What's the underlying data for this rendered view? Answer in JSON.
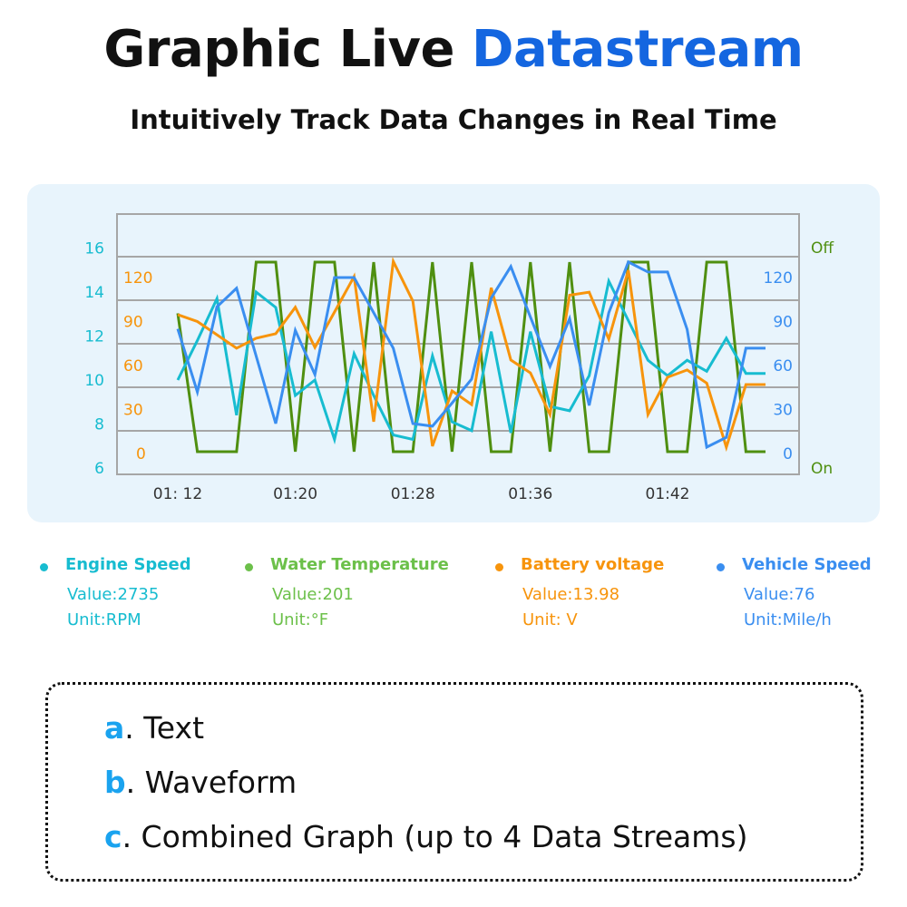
{
  "header": {
    "title_main": "Graphic Live",
    "title_accent": "Datastream",
    "subtitle": "Intuitively Track Data Changes in Real Time"
  },
  "colors": {
    "title_accent": "#1466e0",
    "engine_speed": "#17bcd0",
    "water_temperature_line": "#4f8f10",
    "water_temperature_legend": "#6cc04a",
    "battery_voltage": "#f7940c",
    "vehicle_speed": "#3a8ef0",
    "panel_bg": "#e8f4fc",
    "grid": "#a6a6a6",
    "mode_letter": "#1aa3ef"
  },
  "chart_data": {
    "type": "line",
    "x_tick_labels": [
      {
        "index": 0,
        "label": "01: 12"
      },
      {
        "index": 6,
        "label": "01:20"
      },
      {
        "index": 12,
        "label": "01:28"
      },
      {
        "index": 18,
        "label": "01:36"
      },
      {
        "index": 25,
        "label": "01:42"
      }
    ],
    "grid": true,
    "axes": {
      "left_outer": {
        "series": "Engine Speed",
        "ticks": [
          "6",
          "8",
          "10",
          "12",
          "14",
          "16"
        ],
        "range": [
          6,
          16
        ]
      },
      "left_inner": {
        "series": "Battery voltage",
        "ticks": [
          "0",
          "30",
          "60",
          "90",
          "120"
        ],
        "range": [
          0,
          120
        ]
      },
      "right_inner": {
        "series": "Vehicle Speed",
        "ticks": [
          "0",
          "30",
          "60",
          "90",
          "120"
        ],
        "range": [
          0,
          120
        ]
      },
      "right_outer": {
        "series": "Water Temperature",
        "ticks": [
          "On",
          "Off"
        ],
        "range": [
          0,
          1
        ]
      }
    },
    "series": [
      {
        "name": "Engine Speed",
        "axis": "left_outer",
        "color": "#17bcd0",
        "values": [
          10.0,
          11.8,
          13.7,
          8.4,
          14.0,
          13.3,
          9.3,
          10.0,
          7.3,
          11.2,
          9.3,
          7.5,
          7.3,
          11.1,
          8.1,
          7.7,
          12.2,
          7.6,
          12.2,
          8.8,
          8.6,
          10.2,
          14.5,
          12.7,
          10.9,
          10.2,
          10.9,
          10.4,
          11.9,
          10.3,
          10.3
        ]
      },
      {
        "name": "Water Temperature",
        "axis": "right_outer",
        "color": "#4f8f10",
        "values": [
          0.73,
          0,
          0,
          0,
          1,
          1,
          0,
          1,
          1,
          0,
          1,
          0,
          0,
          1,
          0,
          1,
          0,
          0,
          1,
          0,
          1,
          0,
          0,
          1,
          1,
          0,
          0,
          1,
          1,
          0,
          0
        ]
      },
      {
        "name": "Battery voltage",
        "axis": "left_inner",
        "color": "#f7940c",
        "values": [
          94.7,
          90,
          81,
          71.8,
          78.6,
          81.7,
          99.7,
          72.4,
          96.5,
          120.7,
          21.7,
          131,
          104,
          5,
          42.7,
          33.4,
          113,
          63.8,
          55,
          26.6,
          108,
          110,
          78,
          125,
          26.6,
          52,
          57,
          48,
          4.3,
          47,
          47
        ]
      },
      {
        "name": "Vehicle Speed",
        "axis": "right_inner",
        "color": "#3a8ef0",
        "values": [
          85,
          42,
          100,
          112.7,
          66.5,
          20.4,
          84,
          53.8,
          120,
          120,
          96,
          71.8,
          20.4,
          18.6,
          34.4,
          50.8,
          106,
          127.5,
          93,
          59.4,
          92,
          32.8,
          96,
          130.6,
          123.8,
          123.8,
          84.6,
          4.3,
          11,
          71.8,
          71.8
        ]
      }
    ]
  },
  "legend": [
    {
      "name": "Engine Speed",
      "value": "Value:2735",
      "unit": "Unit:RPM",
      "color": "#17bcd0"
    },
    {
      "name": "Water Temperature",
      "value": "Value:201",
      "unit": "Unit:°F",
      "color": "#6cc04a"
    },
    {
      "name": "Battery voltage",
      "value": "Value:13.98",
      "unit": "Unit: V",
      "color": "#f7940c"
    },
    {
      "name": "Vehicle Speed",
      "value": "Value:76",
      "unit": "Unit:Mile/h",
      "color": "#3a8ef0"
    }
  ],
  "modes": [
    {
      "letter": "a",
      "text": ". Text"
    },
    {
      "letter": "b",
      "text": ". Waveform"
    },
    {
      "letter": "c",
      "text": ". Combined Graph (up to 4 Data Streams)"
    }
  ]
}
